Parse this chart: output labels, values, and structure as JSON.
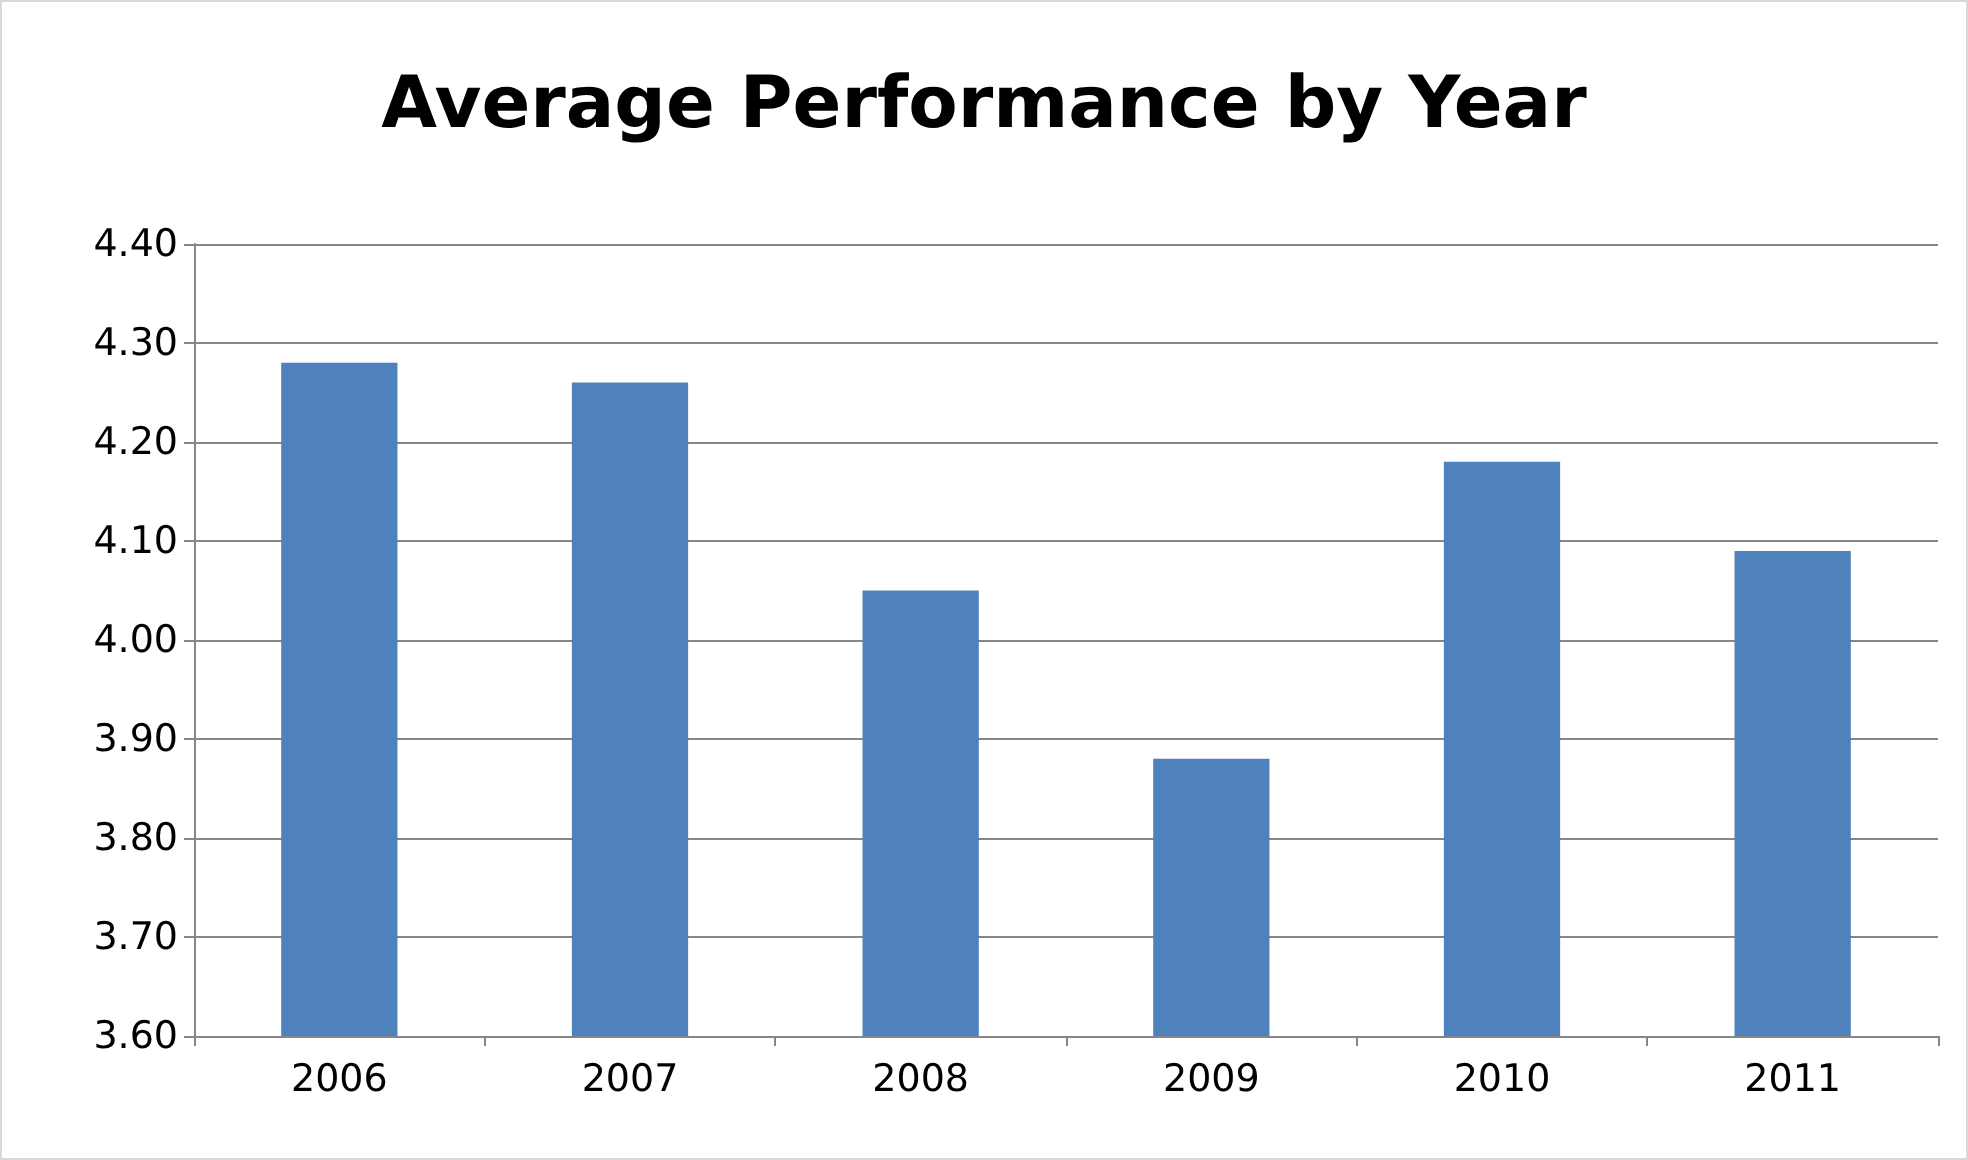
{
  "chart_data": {
    "type": "bar",
    "title": "Average Performance by Year",
    "categories": [
      "2006",
      "2007",
      "2008",
      "2009",
      "2010",
      "2011"
    ],
    "values": [
      4.28,
      4.26,
      4.05,
      3.88,
      4.18,
      4.09
    ],
    "color": "#4f81bd",
    "ylim": [
      3.6,
      4.4
    ],
    "yticks": [
      {
        "value": 3.6,
        "label": "3.60"
      },
      {
        "value": 3.7,
        "label": "3.70"
      },
      {
        "value": 3.8,
        "label": "3.80"
      },
      {
        "value": 3.9,
        "label": "3.90"
      },
      {
        "value": 4.0,
        "label": "4.00"
      },
      {
        "value": 4.1,
        "label": "4.10"
      },
      {
        "value": 4.2,
        "label": "4.20"
      },
      {
        "value": 4.3,
        "label": "4.30"
      },
      {
        "value": 4.4,
        "label": "4.40"
      }
    ],
    "grid": "y"
  }
}
